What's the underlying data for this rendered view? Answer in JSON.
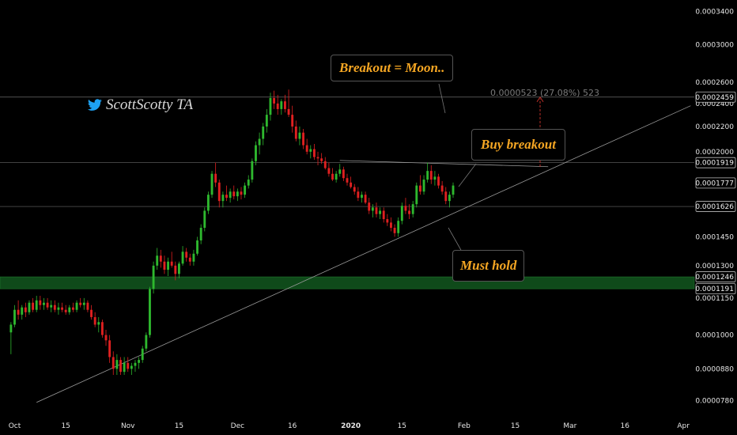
{
  "colors": {
    "up": "#2eb82e",
    "down": "#e02020",
    "accent": "#f5a623",
    "support_zone": "#0f4a1a",
    "grid_line": "#6a6a6a",
    "background": "#000000"
  },
  "watermark": {
    "icon": "twitter-bird-icon",
    "text": "ScottScotty TA"
  },
  "annotations": {
    "breakout_moon": "Breakout = Moon..",
    "buy_breakout": "Buy breakout",
    "must_hold": "Must hold",
    "measure": "0.0000523 (27.08%) 523"
  },
  "chart_data": {
    "type": "candlestick",
    "title": "",
    "xlabel": "",
    "ylabel": "",
    "x_ticks": [
      "Oct",
      "15",
      "Nov",
      "15",
      "Dec",
      "16",
      "2020",
      "15",
      "Feb",
      "15",
      "Mar",
      "16",
      "Apr"
    ],
    "x_tick_dates": [
      "2019-10-01",
      "2019-10-15",
      "2019-11-01",
      "2019-11-15",
      "2019-12-01",
      "2019-12-16",
      "2020-01-01",
      "2020-01-15",
      "2020-02-01",
      "2020-02-15",
      "2020-03-01",
      "2020-03-16",
      "2020-04-01"
    ],
    "y_ticks": [
      "0.0003400",
      "0.0003000",
      "0.0002600",
      "0.0002400",
      "0.0002200",
      "0.0002000",
      "0.0001450",
      "0.0001300",
      "0.0001150",
      "0.0001000",
      "0.0000880",
      "0.0000780"
    ],
    "y_tick_values": [
      0.00034,
      0.0003,
      0.00026,
      0.00024,
      0.00022,
      0.0002,
      0.000145,
      0.00013,
      0.000115,
      0.0001,
      8.8e-05,
      7.8e-05
    ],
    "y_scale": "log",
    "ylim": [
      7.45e-05,
      0.000355
    ],
    "xlim": [
      "2019-09-27",
      "2020-04-04"
    ],
    "price_labels": [
      "0.0002459",
      "0.0001919",
      "0.0001777",
      "0.0001626",
      "0.0001246",
      "0.0001191"
    ],
    "horizontal_levels": [
      0.0002459,
      0.0001919,
      0.0001626
    ],
    "support_zone": [
      0.0001191,
      0.0001246
    ],
    "trendlines": [
      {
        "name": "ascending support",
        "from": [
          "2019-10-07",
          7.75e-05
        ],
        "to": [
          "2020-04-03",
          0.000238
        ]
      },
      {
        "name": "descending resistance",
        "from": [
          "2019-12-29",
          0.0001935
        ],
        "to": [
          "2020-02-24",
          0.000189
        ]
      }
    ],
    "grid": false,
    "candles": [
      [
        "2019-09-30",
        0.000101,
        0.000105,
        9.3e-05,
        0.000104
      ],
      [
        "2019-10-01",
        0.000104,
        0.000112,
        0.000103,
        0.00011
      ],
      [
        "2019-10-02",
        0.00011,
        0.000114,
        0.000106,
        0.000108
      ],
      [
        "2019-10-03",
        0.000108,
        0.000112,
        0.000106,
        0.000111
      ],
      [
        "2019-10-04",
        0.000111,
        0.000113,
        0.000107,
        0.000109
      ],
      [
        "2019-10-05",
        0.000109,
        0.000114,
        0.000108,
        0.000113
      ],
      [
        "2019-10-06",
        0.000113,
        0.000115,
        0.000109,
        0.00011
      ],
      [
        "2019-10-07",
        0.00011,
        0.000116,
        0.000109,
        0.000114
      ],
      [
        "2019-10-08",
        0.000114,
        0.000116,
        0.00011,
        0.000112
      ],
      [
        "2019-10-09",
        0.000112,
        0.000115,
        0.00011,
        0.000113
      ],
      [
        "2019-10-10",
        0.000113,
        0.000115,
        0.00011,
        0.000111
      ],
      [
        "2019-10-11",
        0.000111,
        0.000114,
        0.000109,
        0.000112
      ],
      [
        "2019-10-12",
        0.000112,
        0.000114,
        0.000109,
        0.00011
      ],
      [
        "2019-10-13",
        0.00011,
        0.000113,
        0.000108,
        0.000111
      ],
      [
        "2019-10-14",
        0.000111,
        0.000113,
        0.000109,
        0.00011
      ],
      [
        "2019-10-15",
        0.00011,
        0.000112,
        0.000108,
        0.000109
      ],
      [
        "2019-10-16",
        0.000109,
        0.000112,
        0.000108,
        0.000111
      ],
      [
        "2019-10-17",
        0.000111,
        0.000113,
        0.000109,
        0.00011
      ],
      [
        "2019-10-18",
        0.00011,
        0.000114,
        0.000109,
        0.000113
      ],
      [
        "2019-10-19",
        0.000113,
        0.000115,
        0.000111,
        0.000112
      ],
      [
        "2019-10-20",
        0.000112,
        0.000115,
        0.00011,
        0.000113
      ],
      [
        "2019-10-21",
        0.000113,
        0.000114,
        0.000109,
        0.00011
      ],
      [
        "2019-10-22",
        0.00011,
        0.000112,
        0.000106,
        0.000107
      ],
      [
        "2019-10-23",
        0.000107,
        0.000109,
        0.000103,
        0.000104
      ],
      [
        "2019-10-24",
        0.000104,
        0.000107,
        0.000101,
        0.000105
      ],
      [
        "2019-10-25",
        0.000105,
        0.000106,
        9.9e-05,
        0.0001
      ],
      [
        "2019-10-26",
        0.0001,
        0.000102,
        9.6e-05,
        9.8e-05
      ],
      [
        "2019-10-27",
        9.8e-05,
        0.0001,
        9e-05,
        9.2e-05
      ],
      [
        "2019-10-28",
        9.2e-05,
        9.4e-05,
        8.6e-05,
        8.8e-05
      ],
      [
        "2019-10-29",
        8.8e-05,
        9.3e-05,
        8.6e-05,
        9.1e-05
      ],
      [
        "2019-10-30",
        9.1e-05,
        9.2e-05,
        8.6e-05,
        8.7e-05
      ],
      [
        "2019-10-31",
        8.7e-05,
        9.2e-05,
        8.6e-05,
        9e-05
      ],
      [
        "2019-11-01",
        9e-05,
        9.2e-05,
        8.7e-05,
        8.8e-05
      ],
      [
        "2019-11-02",
        8.8e-05,
        9e-05,
        8.6e-05,
        8.9e-05
      ],
      [
        "2019-11-03",
        8.9e-05,
        9.1e-05,
        8.7e-05,
        9e-05
      ],
      [
        "2019-11-04",
        9e-05,
        9.2e-05,
        8.8e-05,
        9.1e-05
      ],
      [
        "2019-11-05",
        9.1e-05,
        9.6e-05,
        9e-05,
        9.5e-05
      ],
      [
        "2019-11-06",
        9.5e-05,
        0.000101,
        9.4e-05,
        0.0001
      ],
      [
        "2019-11-07",
        0.0001,
        0.00012,
        9.9e-05,
        0.000119
      ],
      [
        "2019-11-08",
        0.000119,
        0.000132,
        0.000117,
        0.00013
      ],
      [
        "2019-11-09",
        0.00013,
        0.000139,
        0.000128,
        0.000135
      ],
      [
        "2019-11-10",
        0.000135,
        0.000138,
        0.000129,
        0.000132
      ],
      [
        "2019-11-11",
        0.000132,
        0.000135,
        0.000126,
        0.000128
      ],
      [
        "2019-11-12",
        0.000128,
        0.000134,
        0.000125,
        0.000132
      ],
      [
        "2019-11-13",
        0.000132,
        0.000137,
        0.000129,
        0.00013
      ],
      [
        "2019-11-14",
        0.00013,
        0.000132,
        0.000123,
        0.000126
      ],
      [
        "2019-11-15",
        0.000126,
        0.000132,
        0.000124,
        0.000131
      ],
      [
        "2019-11-16",
        0.000131,
        0.00014,
        0.00013,
        0.000137
      ],
      [
        "2019-11-17",
        0.000137,
        0.000139,
        0.000132,
        0.000134
      ],
      [
        "2019-11-18",
        0.000134,
        0.000136,
        0.00013,
        0.000132
      ],
      [
        "2019-11-19",
        0.000132,
        0.000138,
        0.00013,
        0.000136
      ],
      [
        "2019-11-20",
        0.000136,
        0.000145,
        0.000135,
        0.000143
      ],
      [
        "2019-11-21",
        0.000143,
        0.000152,
        0.000141,
        0.00015
      ],
      [
        "2019-11-22",
        0.00015,
        0.000162,
        0.000148,
        0.00016
      ],
      [
        "2019-11-23",
        0.00016,
        0.000172,
        0.000158,
        0.00017
      ],
      [
        "2019-11-24",
        0.00017,
        0.000186,
        0.000168,
        0.000184
      ],
      [
        "2019-11-25",
        0.000184,
        0.000192,
        0.000175,
        0.000178
      ],
      [
        "2019-11-26",
        0.000178,
        0.00018,
        0.000162,
        0.000166
      ],
      [
        "2019-11-27",
        0.000166,
        0.000172,
        0.000162,
        0.00017
      ],
      [
        "2019-11-28",
        0.00017,
        0.000176,
        0.000166,
        0.000168
      ],
      [
        "2019-11-29",
        0.000168,
        0.000174,
        0.000165,
        0.000172
      ],
      [
        "2019-11-30",
        0.000172,
        0.000176,
        0.000167,
        0.000169
      ],
      [
        "2019-12-01",
        0.000169,
        0.000174,
        0.000166,
        0.000172
      ],
      [
        "2019-12-02",
        0.000172,
        0.000175,
        0.000167,
        0.00017
      ],
      [
        "2019-12-03",
        0.00017,
        0.000178,
        0.000168,
        0.000176
      ],
      [
        "2019-12-04",
        0.000176,
        0.000183,
        0.000174,
        0.00018
      ],
      [
        "2019-12-05",
        0.00018,
        0.000195,
        0.000178,
        0.000193
      ],
      [
        "2019-12-06",
        0.000193,
        0.000208,
        0.00019,
        0.000205
      ],
      [
        "2019-12-07",
        0.000205,
        0.000215,
        0.000198,
        0.00021
      ],
      [
        "2019-12-08",
        0.00021,
        0.000223,
        0.000205,
        0.00022
      ],
      [
        "2019-12-09",
        0.00022,
        0.000235,
        0.000215,
        0.00023
      ],
      [
        "2019-12-10",
        0.00023,
        0.00025,
        0.000225,
        0.000245
      ],
      [
        "2019-12-11",
        0.000245,
        0.000252,
        0.000235,
        0.00024
      ],
      [
        "2019-12-12",
        0.00024,
        0.000248,
        0.00023,
        0.000235
      ],
      [
        "2019-12-13",
        0.000235,
        0.000244,
        0.00023,
        0.000242
      ],
      [
        "2019-12-14",
        0.000242,
        0.000248,
        0.000232,
        0.000235
      ],
      [
        "2019-12-15",
        0.000235,
        0.000253,
        0.000228,
        0.00023
      ],
      [
        "2019-12-16",
        0.00023,
        0.000238,
        0.000215,
        0.00022
      ],
      [
        "2019-12-17",
        0.00022,
        0.000225,
        0.000208,
        0.00021
      ],
      [
        "2019-12-18",
        0.00021,
        0.00022,
        0.000205,
        0.000215
      ],
      [
        "2019-12-19",
        0.000215,
        0.000218,
        0.000202,
        0.000205
      ],
      [
        "2019-12-20",
        0.000205,
        0.00021,
        0.000198,
        0.0002
      ],
      [
        "2019-12-21",
        0.0002,
        0.000205,
        0.000195,
        0.000202
      ],
      [
        "2019-12-22",
        0.000202,
        0.000206,
        0.000194,
        0.000196
      ],
      [
        "2019-12-23",
        0.000196,
        0.0002,
        0.00019,
        0.000195
      ],
      [
        "2019-12-24",
        0.000195,
        0.000199,
        0.000191,
        0.000193
      ],
      [
        "2019-12-25",
        0.000193,
        0.000196,
        0.000187,
        0.000188
      ],
      [
        "2019-12-26",
        0.000188,
        0.000192,
        0.000182,
        0.000184
      ],
      [
        "2019-12-27",
        0.000184,
        0.000188,
        0.000179,
        0.00018
      ],
      [
        "2019-12-28",
        0.00018,
        0.000186,
        0.000178,
        0.000184
      ],
      [
        "2019-12-29",
        0.000184,
        0.000191,
        0.000182,
        0.000187
      ],
      [
        "2019-12-30",
        0.000187,
        0.000189,
        0.000179,
        0.000181
      ],
      [
        "2019-12-31",
        0.000181,
        0.000184,
        0.000176,
        0.000178
      ],
      [
        "2020-01-01",
        0.000178,
        0.000182,
        0.000174,
        0.000175
      ],
      [
        "2020-01-02",
        0.000175,
        0.000177,
        0.00017,
        0.000172
      ],
      [
        "2020-01-03",
        0.000172,
        0.000175,
        0.000166,
        0.000168
      ],
      [
        "2020-01-04",
        0.000168,
        0.000172,
        0.000165,
        0.00017
      ],
      [
        "2020-01-05",
        0.00017,
        0.000172,
        0.000164,
        0.000165
      ],
      [
        "2020-01-06",
        0.000165,
        0.000168,
        0.000158,
        0.00016
      ],
      [
        "2020-01-07",
        0.00016,
        0.000164,
        0.000156,
        0.000162
      ],
      [
        "2020-01-08",
        0.000162,
        0.000165,
        0.000156,
        0.000158
      ],
      [
        "2020-01-09",
        0.000158,
        0.000162,
        0.000155,
        0.00016
      ],
      [
        "2020-01-10",
        0.00016,
        0.000162,
        0.000153,
        0.000155
      ],
      [
        "2020-01-11",
        0.000155,
        0.000158,
        0.000151,
        0.000153
      ],
      [
        "2020-01-12",
        0.000153,
        0.000156,
        0.000148,
        0.00015
      ],
      [
        "2020-01-13",
        0.00015,
        0.000152,
        0.000145,
        0.000147
      ],
      [
        "2020-01-14",
        0.000147,
        0.000156,
        0.000145,
        0.000154
      ],
      [
        "2020-01-15",
        0.000154,
        0.000165,
        0.000152,
        0.000163
      ],
      [
        "2020-01-16",
        0.000163,
        0.000168,
        0.000158,
        0.00016
      ],
      [
        "2020-01-17",
        0.00016,
        0.000164,
        0.000155,
        0.000158
      ],
      [
        "2020-01-18",
        0.000158,
        0.000166,
        0.000156,
        0.000164
      ],
      [
        "2020-01-19",
        0.000164,
        0.000178,
        0.000162,
        0.000176
      ],
      [
        "2020-01-20",
        0.000176,
        0.000183,
        0.00017,
        0.000172
      ],
      [
        "2020-01-21",
        0.000172,
        0.000183,
        0.00017,
        0.00018
      ],
      [
        "2020-01-22",
        0.00018,
        0.000192,
        0.000178,
        0.000186
      ],
      [
        "2020-01-23",
        0.000186,
        0.00019,
        0.000177,
        0.00018
      ],
      [
        "2020-01-24",
        0.00018,
        0.000186,
        0.000176,
        0.000182
      ],
      [
        "2020-01-25",
        0.000182,
        0.000184,
        0.000174,
        0.000176
      ],
      [
        "2020-01-26",
        0.000176,
        0.000179,
        0.00017,
        0.000172
      ],
      [
        "2020-01-27",
        0.000172,
        0.000175,
        0.000164,
        0.000166
      ],
      [
        "2020-01-28",
        0.000166,
        0.000172,
        0.000162,
        0.00017
      ],
      [
        "2020-01-29",
        0.00017,
        0.000178,
        0.000168,
        0.000176
      ]
    ]
  }
}
